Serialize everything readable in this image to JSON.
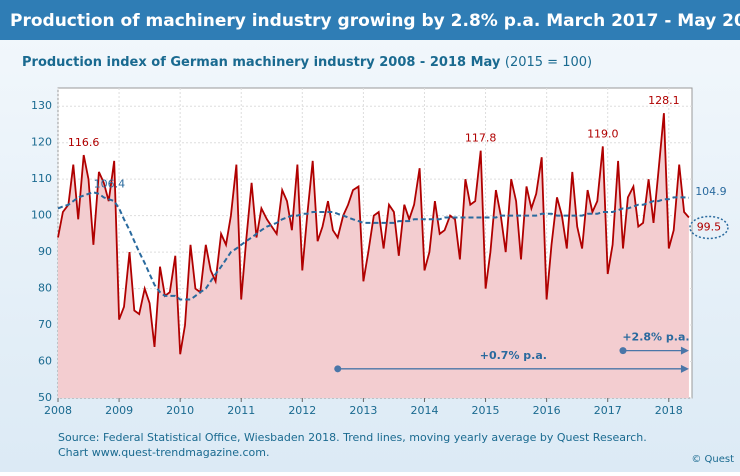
{
  "chart_data": {
    "type": "line",
    "title": "Production of machinery industry growing by 2.8% p.a. March 2017 - May 2018",
    "subtitle": "Production index of German machinery industry 2008 - 2018 May",
    "subtitle_note": "(2015 = 100)",
    "source": [
      "Source: Federal Statistical Office, Wiesbaden 2018. Trend lines, moving yearly average by Quest Research.",
      "Chart www.quest-trendmagazine.com."
    ],
    "credit": "© Quest",
    "x": [
      2008.0,
      2008.08,
      2008.17,
      2008.25,
      2008.33,
      2008.42,
      2008.5,
      2008.58,
      2008.67,
      2008.75,
      2008.83,
      2008.92,
      2009.0,
      2009.08,
      2009.17,
      2009.25,
      2009.33,
      2009.42,
      2009.5,
      2009.58,
      2009.67,
      2009.75,
      2009.83,
      2009.92,
      2010.0,
      2010.08,
      2010.17,
      2010.25,
      2010.33,
      2010.42,
      2010.5,
      2010.58,
      2010.67,
      2010.75,
      2010.83,
      2010.92,
      2011.0,
      2011.08,
      2011.17,
      2011.25,
      2011.33,
      2011.42,
      2011.5,
      2011.58,
      2011.67,
      2011.75,
      2011.83,
      2011.92,
      2012.0,
      2012.08,
      2012.17,
      2012.25,
      2012.33,
      2012.42,
      2012.5,
      2012.58,
      2012.67,
      2012.75,
      2012.83,
      2012.92,
      2013.0,
      2013.08,
      2013.17,
      2013.25,
      2013.33,
      2013.42,
      2013.5,
      2013.58,
      2013.67,
      2013.75,
      2013.83,
      2013.92,
      2014.0,
      2014.08,
      2014.17,
      2014.25,
      2014.33,
      2014.42,
      2014.5,
      2014.58,
      2014.67,
      2014.75,
      2014.83,
      2014.92,
      2015.0,
      2015.08,
      2015.17,
      2015.25,
      2015.33,
      2015.42,
      2015.5,
      2015.58,
      2015.67,
      2015.75,
      2015.83,
      2015.92,
      2016.0,
      2016.08,
      2016.17,
      2016.25,
      2016.33,
      2016.42,
      2016.5,
      2016.58,
      2016.67,
      2016.75,
      2016.83,
      2016.92,
      2017.0,
      2017.08,
      2017.17,
      2017.25,
      2017.33,
      2017.42,
      2017.5,
      2017.58,
      2017.67,
      2017.75,
      2017.83,
      2017.92,
      2018.0,
      2018.08,
      2018.17,
      2018.25,
      2018.33
    ],
    "series": [
      {
        "color": "#b00000",
        "fill": "#f3cdd0",
        "values": [
          94,
          101,
          103,
          114,
          99,
          116.6,
          110,
          92,
          112,
          109,
          104,
          115,
          71.5,
          75,
          90,
          74,
          73,
          80,
          76,
          64,
          86,
          78,
          79,
          89,
          62,
          70,
          92,
          80,
          79,
          92,
          85,
          82,
          95,
          92,
          100,
          114,
          77,
          93,
          109,
          94,
          102,
          99,
          97,
          95,
          107,
          104,
          96,
          114,
          85,
          100,
          115,
          93,
          97,
          104,
          96,
          94,
          100,
          103,
          107,
          108,
          82,
          90,
          100,
          101,
          91,
          103,
          101,
          89,
          103,
          99,
          103,
          113,
          85,
          90,
          104,
          95,
          96,
          100,
          99,
          88,
          110,
          103,
          104,
          117.8,
          80,
          90,
          107,
          100,
          90,
          110,
          104,
          88,
          108,
          102,
          106,
          116,
          77,
          92,
          105,
          100,
          91,
          112,
          97,
          91,
          107,
          101,
          104,
          119,
          84,
          92,
          115,
          91,
          105,
          108,
          97,
          98,
          110,
          98,
          112,
          128.1,
          91,
          96,
          114,
          101,
          99.5
        ],
        "value_labels": [
          null,
          null,
          null,
          null,
          null,
          "116.6",
          null,
          null,
          null,
          null,
          null,
          null,
          null,
          null,
          null,
          null,
          null,
          null,
          null,
          null,
          null,
          null,
          null,
          null,
          null,
          null,
          null,
          null,
          null,
          null,
          null,
          null,
          null,
          null,
          null,
          null,
          null,
          null,
          null,
          null,
          null,
          null,
          null,
          null,
          null,
          null,
          null,
          null,
          null,
          null,
          null,
          null,
          null,
          null,
          null,
          null,
          null,
          null,
          null,
          null,
          null,
          null,
          null,
          null,
          null,
          null,
          null,
          null,
          null,
          null,
          null,
          null,
          null,
          null,
          null,
          null,
          null,
          null,
          null,
          null,
          null,
          null,
          null,
          "117.8",
          null,
          null,
          null,
          null,
          null,
          null,
          null,
          null,
          null,
          null,
          null,
          null,
          null,
          null,
          null,
          null,
          null,
          null,
          null,
          null,
          null,
          null,
          null,
          "119.0",
          null,
          null,
          null,
          null,
          null,
          null,
          null,
          null,
          null,
          null,
          null,
          "128.1",
          null,
          null,
          null,
          null,
          "99.5"
        ]
      },
      {
        "color": "#2a6a9e",
        "dashed": true,
        "values": [
          102,
          102.5,
          103,
          104,
          105,
          105.5,
          106,
          106.4,
          106,
          105,
          104.5,
          104,
          102,
          99,
          96,
          93,
          90,
          87,
          84,
          81,
          79,
          78,
          78,
          78,
          77,
          77,
          77,
          78,
          79,
          80,
          82,
          84,
          86,
          88,
          90,
          91,
          92,
          93,
          94,
          95,
          96,
          97,
          97.5,
          98,
          99,
          99.5,
          100,
          100,
          100.5,
          100.5,
          101,
          101,
          101,
          101,
          101,
          100.5,
          100,
          99.5,
          99,
          98.5,
          98,
          98,
          98,
          98,
          98,
          98,
          98,
          98.5,
          98.5,
          98.5,
          99,
          99,
          99,
          99,
          99,
          99,
          99.5,
          99.5,
          99.5,
          99.5,
          99.5,
          99.5,
          99.5,
          99.5,
          99.5,
          99.5,
          99.5,
          100,
          100,
          100,
          100,
          100,
          100,
          100,
          100,
          100.5,
          100.5,
          100.5,
          100,
          100,
          100,
          100,
          100,
          100,
          100.5,
          100.5,
          100.5,
          101,
          101,
          101,
          101.5,
          102,
          102,
          102.5,
          103,
          103,
          103.5,
          104,
          104,
          104.5,
          104.5,
          105,
          105,
          105,
          104.9
        ],
        "value_labels": [
          null,
          null,
          null,
          null,
          null,
          null,
          null,
          "106.4",
          null,
          null,
          null,
          null,
          null,
          null,
          null,
          null,
          null,
          null,
          null,
          null,
          null,
          null,
          null,
          null,
          null,
          null,
          null,
          null,
          null,
          null,
          null,
          null,
          null,
          null,
          null,
          null,
          null,
          null,
          null,
          null,
          null,
          null,
          null,
          null,
          null,
          null,
          null,
          null,
          null,
          null,
          null,
          null,
          null,
          null,
          null,
          null,
          null,
          null,
          null,
          null,
          null,
          null,
          null,
          null,
          null,
          null,
          null,
          null,
          null,
          null,
          null,
          null,
          null,
          null,
          null,
          null,
          null,
          null,
          null,
          null,
          null,
          null,
          null,
          null,
          null,
          null,
          null,
          null,
          null,
          null,
          null,
          null,
          null,
          null,
          null,
          null,
          null,
          null,
          null,
          null,
          null,
          null,
          null,
          null,
          null,
          null,
          null,
          null,
          null,
          null,
          null,
          null,
          null,
          null,
          null,
          null,
          null,
          null,
          null,
          null,
          null,
          null,
          null,
          null,
          "104.9"
        ]
      }
    ],
    "annotations": [
      {
        "text": "+0.7% p.a.",
        "x": [
          2012.58,
          2018.33
        ],
        "y": 58
      },
      {
        "text": "+2.8% p.a.",
        "x": [
          2017.25,
          2018.33
        ],
        "y": 63
      }
    ],
    "xlim": [
      2008,
      2018.38
    ],
    "xticks": [
      2008,
      2009,
      2010,
      2011,
      2012,
      2013,
      2014,
      2015,
      2016,
      2017,
      2018
    ],
    "ylim": [
      50,
      135
    ],
    "yticks": [
      50,
      60,
      70,
      80,
      90,
      100,
      110,
      120,
      130
    ],
    "grid": true
  }
}
